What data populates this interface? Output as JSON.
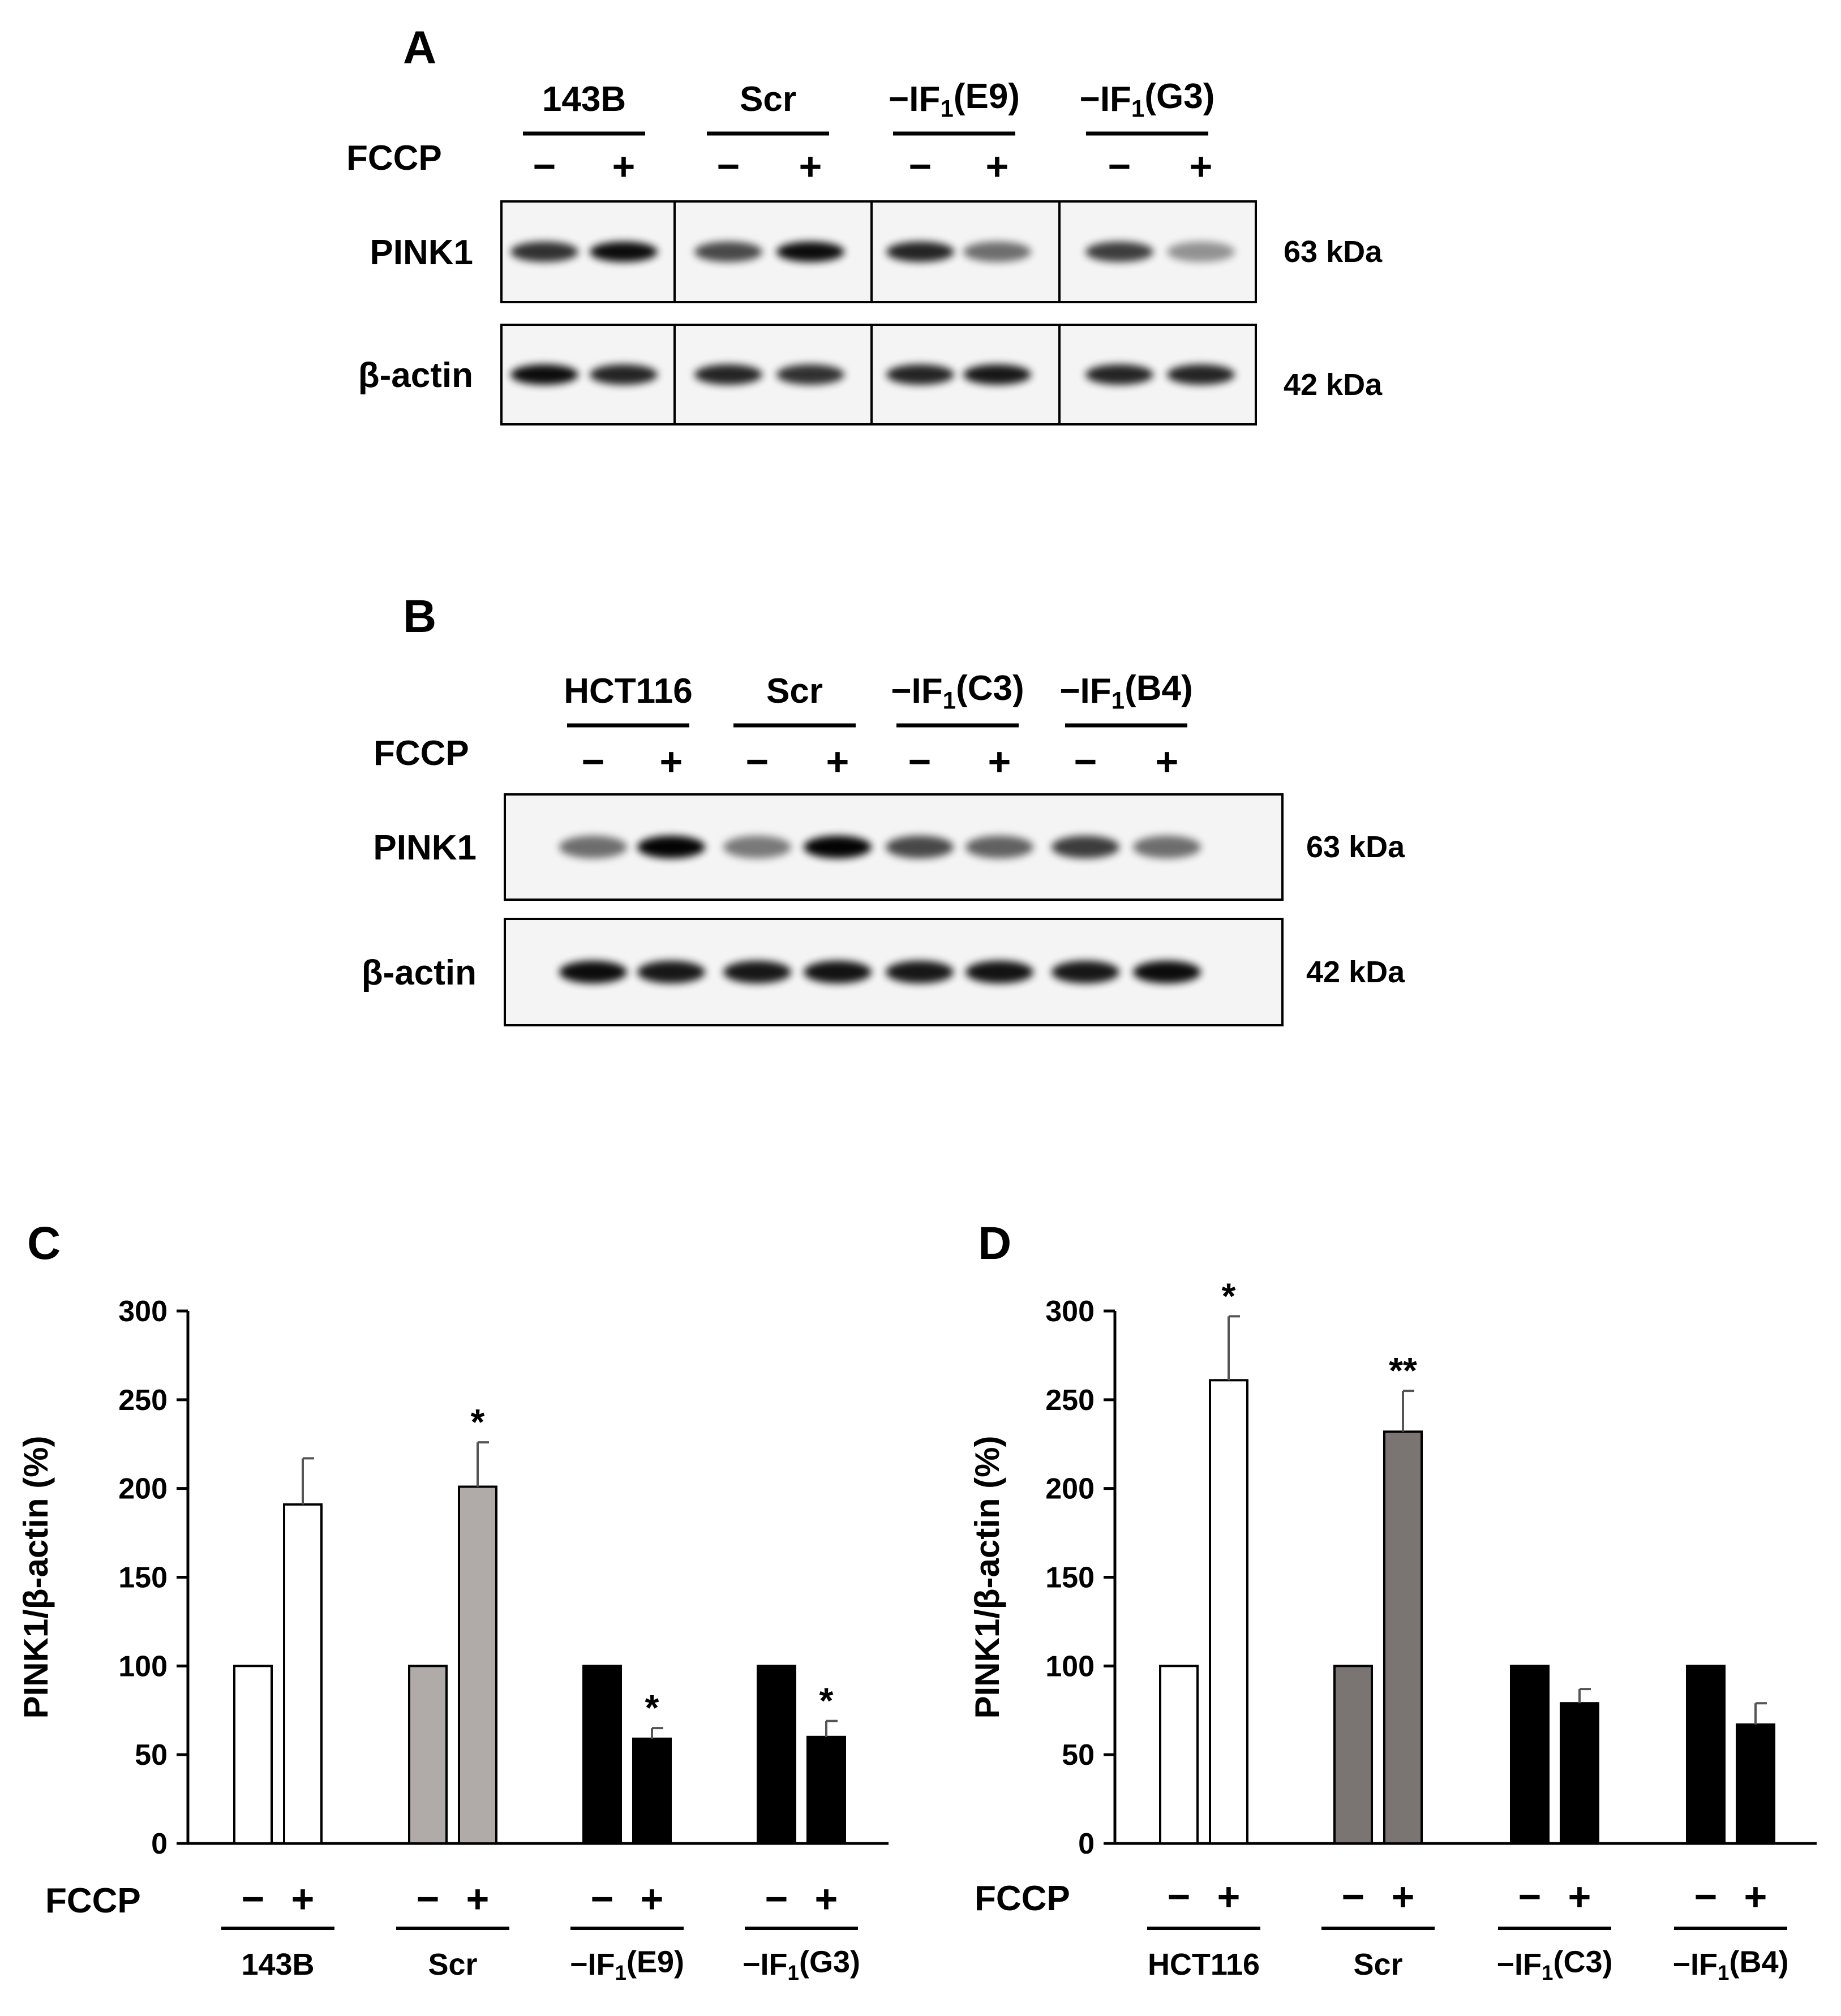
{
  "panels": {
    "A": {
      "letter": "A",
      "fccp_label": "FCCP",
      "minus": "−",
      "plus": "+",
      "groups": [
        {
          "label": "143B",
          "sub": ""
        },
        {
          "label": "Scr",
          "sub": ""
        },
        {
          "label": "−IF",
          "sub": "1",
          "suffix": "(E9)"
        },
        {
          "label": "−IF",
          "sub": "1",
          "suffix": "(G3)"
        }
      ],
      "rows": [
        {
          "label": "PINK1",
          "kda": "63 kDa",
          "lanes": [
            0.8,
            0.95,
            0.7,
            0.95,
            0.85,
            0.55,
            0.75,
            0.4
          ]
        },
        {
          "label": "β-actin",
          "kda": "42 kDa",
          "lanes": [
            0.95,
            0.85,
            0.85,
            0.8,
            0.85,
            0.9,
            0.85,
            0.85
          ]
        }
      ]
    },
    "B": {
      "letter": "B",
      "fccp_label": "FCCP",
      "minus": "−",
      "plus": "+",
      "groups": [
        {
          "label": "HCT116",
          "sub": ""
        },
        {
          "label": "Scr",
          "sub": ""
        },
        {
          "label": "−IF",
          "sub": "1",
          "suffix": "(C3)"
        },
        {
          "label": "−IF",
          "sub": "1",
          "suffix": "(B4)"
        }
      ],
      "rows": [
        {
          "label": "PINK1",
          "kda": "63 kDa",
          "lanes": [
            0.55,
            0.98,
            0.5,
            0.98,
            0.7,
            0.6,
            0.75,
            0.55
          ]
        },
        {
          "label": "β-actin",
          "kda": "42 kDa",
          "lanes": [
            0.95,
            0.9,
            0.9,
            0.92,
            0.9,
            0.92,
            0.9,
            0.95
          ]
        }
      ]
    }
  },
  "chart_data": [
    {
      "panel": "C",
      "type": "bar",
      "ylabel": "PINK1/β-actin (%)",
      "ylim": [
        0,
        300
      ],
      "yticks": [
        0,
        50,
        100,
        150,
        200,
        250,
        300
      ],
      "fccp_label": "FCCP",
      "categories": [
        "143B",
        "Scr",
        "−IF1(E9)",
        "−IF1(G3)"
      ],
      "category_display": [
        {
          "label": "143B",
          "sub": "",
          "suffix": ""
        },
        {
          "label": "Scr",
          "sub": "",
          "suffix": ""
        },
        {
          "label": "−IF",
          "sub": "1",
          "suffix": "(E9)"
        },
        {
          "label": "−IF",
          "sub": "1",
          "suffix": "(G3)"
        }
      ],
      "conditions": [
        "−",
        "+"
      ],
      "series": [
        {
          "values": [
            100,
            100,
            100,
            100
          ],
          "errors": [
            0,
            0,
            0,
            0
          ],
          "sig": [
            "",
            "",
            "",
            ""
          ]
        },
        {
          "values": [
            191,
            201,
            59,
            60
          ],
          "errors": [
            26,
            25,
            6,
            9
          ],
          "sig": [
            "",
            "*",
            "*",
            "*"
          ]
        }
      ],
      "group_colors": [
        "#ffffff",
        "#b0aba8",
        "#000000",
        "#000000"
      ]
    },
    {
      "panel": "D",
      "type": "bar",
      "ylabel": "PINK1/β-actin (%)",
      "ylim": [
        0,
        300
      ],
      "yticks": [
        0,
        50,
        100,
        150,
        200,
        250,
        300
      ],
      "fccp_label": "FCCP",
      "categories": [
        "HCT116",
        "Scr",
        "−IF1(C3)",
        "−IF1(B4)"
      ],
      "category_display": [
        {
          "label": "HCT116",
          "sub": "",
          "suffix": ""
        },
        {
          "label": "Scr",
          "sub": "",
          "suffix": ""
        },
        {
          "label": "−IF",
          "sub": "1",
          "suffix": "(C3)"
        },
        {
          "label": "−IF",
          "sub": "1",
          "suffix": "(B4)"
        }
      ],
      "conditions": [
        "−",
        "+"
      ],
      "series": [
        {
          "values": [
            100,
            100,
            100,
            100
          ],
          "errors": [
            0,
            0,
            0,
            0
          ],
          "sig": [
            "",
            "",
            "",
            ""
          ]
        },
        {
          "values": [
            261,
            232,
            79,
            67
          ],
          "errors": [
            36,
            23,
            8,
            12
          ],
          "sig": [
            "*",
            "**",
            "",
            ""
          ]
        }
      ],
      "group_colors": [
        "#ffffff",
        "#7a7472",
        "#000000",
        "#000000"
      ]
    }
  ]
}
